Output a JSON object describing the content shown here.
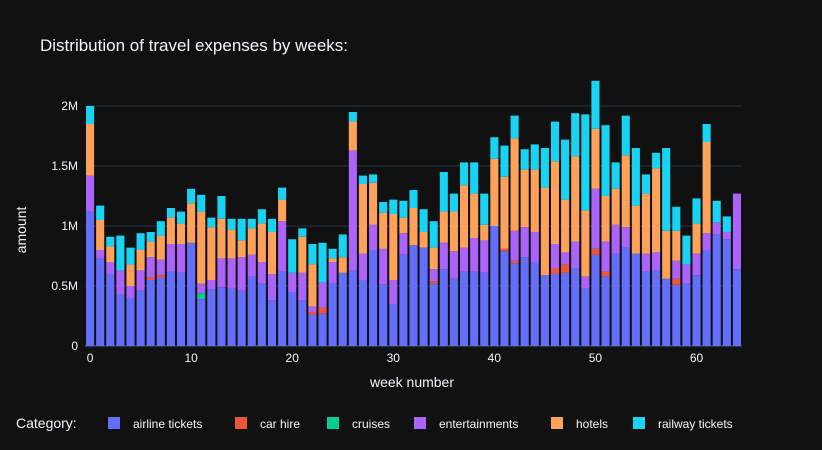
{
  "chart_data": {
    "type": "bar",
    "stacked": true,
    "title": "Distribution of travel expenses by weeks:",
    "xlabel": "week number",
    "ylabel": "amount",
    "xlim": [
      -0.5,
      64.5
    ],
    "ylim": [
      0,
      2050000
    ],
    "x_ticks": [
      0,
      10,
      20,
      30,
      40,
      50,
      60
    ],
    "y_ticks": [
      0,
      500000,
      1000000,
      1500000,
      2000000
    ],
    "y_tick_labels": [
      "0",
      "0.5M",
      "1M",
      "1.5M",
      "2M"
    ],
    "grid": true,
    "legend": {
      "title": "Category:",
      "position": "bottom"
    },
    "x": [
      0,
      1,
      2,
      3,
      4,
      5,
      6,
      7,
      8,
      9,
      10,
      11,
      12,
      13,
      14,
      15,
      16,
      17,
      18,
      19,
      20,
      21,
      22,
      23,
      24,
      25,
      26,
      27,
      28,
      29,
      30,
      31,
      32,
      33,
      34,
      35,
      36,
      37,
      38,
      39,
      40,
      41,
      42,
      43,
      44,
      45,
      46,
      47,
      48,
      49,
      50,
      51,
      52,
      53,
      54,
      55,
      56,
      57,
      58,
      59,
      60,
      61,
      62,
      63,
      64
    ],
    "series": [
      {
        "name": "airline tickets",
        "color": "#636efa",
        "values": [
          1120000,
          730000,
          600000,
          430000,
          400000,
          460000,
          550000,
          570000,
          620000,
          610000,
          860000,
          390000,
          470000,
          490000,
          480000,
          460000,
          580000,
          520000,
          380000,
          620000,
          450000,
          380000,
          260000,
          270000,
          520000,
          610000,
          630000,
          550000,
          800000,
          510000,
          350000,
          760000,
          840000,
          820000,
          520000,
          640000,
          560000,
          620000,
          620000,
          610000,
          1000000,
          790000,
          690000,
          740000,
          700000,
          590000,
          600000,
          610000,
          650000,
          480000,
          760000,
          580000,
          770000,
          820000,
          770000,
          620000,
          630000,
          560000,
          510000,
          520000,
          590000,
          800000,
          930000,
          890000,
          640000
        ]
      },
      {
        "name": "car hire",
        "color": "#ef553b",
        "values": [
          0,
          0,
          0,
          0,
          0,
          0,
          20000,
          20000,
          0,
          0,
          0,
          0,
          0,
          0,
          0,
          0,
          0,
          0,
          0,
          0,
          0,
          0,
          20000,
          50000,
          0,
          0,
          0,
          0,
          0,
          0,
          0,
          0,
          0,
          0,
          20000,
          0,
          0,
          0,
          0,
          0,
          0,
          20000,
          20000,
          0,
          0,
          0,
          50000,
          70000,
          0,
          0,
          50000,
          40000,
          0,
          0,
          0,
          0,
          0,
          0,
          50000,
          0,
          0,
          0,
          0,
          0,
          0
        ]
      },
      {
        "name": "cruises",
        "color": "#00cc96",
        "values": [
          0,
          0,
          0,
          0,
          0,
          0,
          0,
          0,
          0,
          0,
          0,
          50000,
          0,
          0,
          0,
          0,
          0,
          0,
          0,
          0,
          0,
          0,
          0,
          0,
          0,
          0,
          0,
          0,
          0,
          0,
          0,
          0,
          0,
          0,
          0,
          0,
          0,
          0,
          0,
          0,
          0,
          0,
          0,
          0,
          0,
          0,
          0,
          0,
          0,
          0,
          0,
          0,
          0,
          0,
          0,
          0,
          0,
          0,
          0,
          0,
          0,
          0,
          0,
          0,
          0
        ]
      },
      {
        "name": "entertainments",
        "color": "#ab63fa",
        "values": [
          300000,
          70000,
          100000,
          200000,
          100000,
          170000,
          170000,
          130000,
          230000,
          240000,
          0,
          80000,
          80000,
          240000,
          250000,
          280000,
          180000,
          180000,
          220000,
          420000,
          160000,
          230000,
          50000,
          210000,
          180000,
          0,
          1000000,
          220000,
          210000,
          300000,
          200000,
          180000,
          0,
          0,
          100000,
          220000,
          230000,
          200000,
          280000,
          270000,
          0,
          0,
          250000,
          250000,
          250000,
          0,
          200000,
          100000,
          220000,
          100000,
          500000,
          250000,
          240000,
          170000,
          0,
          150000,
          150000,
          0,
          150000,
          160000,
          180000,
          140000,
          100000,
          60000,
          630000
        ]
      },
      {
        "name": "hotels",
        "color": "#fea15a",
        "values": [
          430000,
          250000,
          130000,
          0,
          180000,
          170000,
          130000,
          200000,
          220000,
          170000,
          330000,
          600000,
          440000,
          330000,
          240000,
          140000,
          220000,
          320000,
          350000,
          180000,
          0,
          300000,
          350000,
          0,
          30000,
          130000,
          240000,
          580000,
          350000,
          300000,
          550000,
          130000,
          310000,
          130000,
          180000,
          260000,
          330000,
          520000,
          370000,
          130000,
          560000,
          600000,
          770000,
          480000,
          520000,
          730000,
          690000,
          440000,
          710000,
          550000,
          500000,
          380000,
          300000,
          600000,
          400000,
          500000,
          700000,
          400000,
          250000,
          0,
          250000,
          760000,
          0,
          0,
          0
        ]
      },
      {
        "name": "railway tickets",
        "color": "#19d3f3",
        "values": [
          150000,
          120000,
          80000,
          290000,
          140000,
          140000,
          80000,
          120000,
          80000,
          100000,
          120000,
          140000,
          80000,
          190000,
          90000,
          180000,
          80000,
          120000,
          110000,
          100000,
          280000,
          70000,
          170000,
          330000,
          80000,
          190000,
          80000,
          70000,
          70000,
          90000,
          120000,
          140000,
          150000,
          190000,
          220000,
          330000,
          150000,
          190000,
          260000,
          260000,
          180000,
          260000,
          190000,
          170000,
          210000,
          330000,
          330000,
          500000,
          360000,
          800000,
          400000,
          590000,
          220000,
          330000,
          480000,
          160000,
          130000,
          690000,
          200000,
          240000,
          210000,
          150000,
          180000,
          130000,
          0
        ]
      }
    ]
  }
}
